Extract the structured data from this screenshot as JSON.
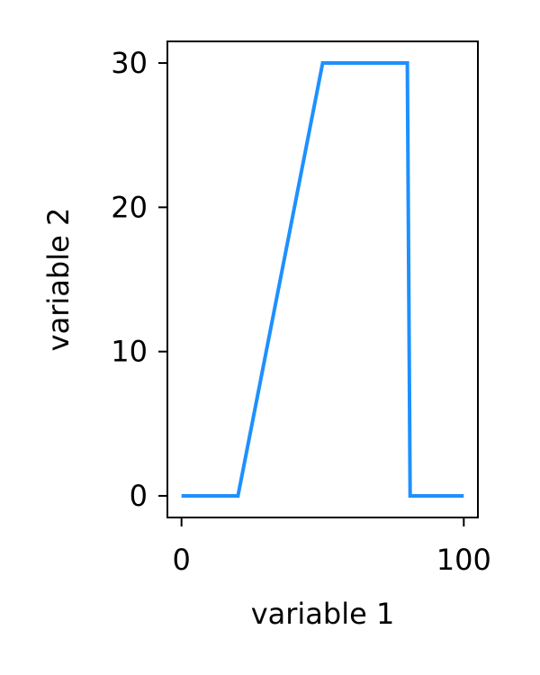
{
  "chart_data": {
    "type": "line",
    "xlabel": "variable 1",
    "ylabel": "variable 2",
    "xlim": [
      -5,
      105
    ],
    "ylim": [
      -1.5,
      31.5
    ],
    "xticks": [
      0,
      100
    ],
    "yticks": [
      0,
      10,
      20,
      30
    ],
    "grid": false,
    "legend": "none",
    "series": [
      {
        "color": "#1e90ff",
        "x": [
          0,
          20,
          50,
          80,
          81,
          100
        ],
        "y": [
          0,
          0,
          30,
          30,
          0,
          0
        ]
      }
    ]
  }
}
